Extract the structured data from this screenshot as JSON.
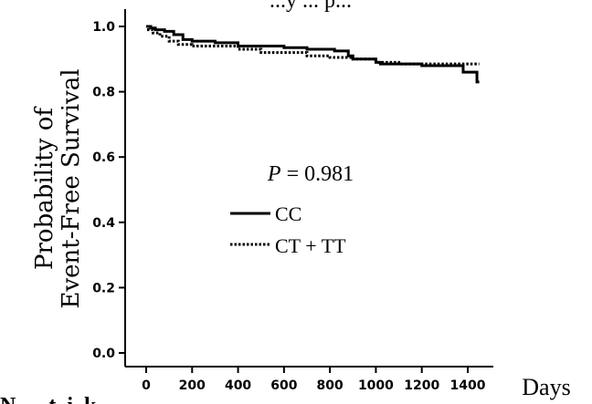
{
  "chart_data": {
    "type": "line",
    "title": "...y ... p...",
    "ylabel_line1": "Probability of",
    "ylabel_line2": "Event-Free Survival",
    "xlabel": "Days",
    "xlim": [
      0,
      1500
    ],
    "ylim": [
      0.0,
      1.0
    ],
    "x_ticks": [
      0,
      200,
      400,
      600,
      800,
      1000,
      1200,
      1400
    ],
    "x_tick_labels": [
      "0",
      "200",
      "400",
      "600",
      "800",
      "1000",
      "1200",
      "1400"
    ],
    "y_ticks": [
      0.0,
      0.2,
      0.4,
      0.6,
      0.8,
      1.0
    ],
    "y_tick_labels": [
      "0.0",
      "0.2",
      "0.4",
      "0.6",
      "0.8",
      "1.0"
    ],
    "annotation": {
      "p_symbol": "P",
      "p_text": " = 0.981"
    },
    "bottom_left_text": "N... ..t..i..k",
    "legend_position": "center",
    "series": [
      {
        "name": "CC",
        "style": "solid",
        "color": "#000000",
        "x": [
          0,
          20,
          40,
          80,
          120,
          160,
          200,
          300,
          400,
          450,
          600,
          700,
          820,
          880,
          900,
          1000,
          1020,
          1200,
          1380,
          1440,
          1450
        ],
        "y": [
          1.0,
          0.995,
          0.99,
          0.985,
          0.975,
          0.96,
          0.955,
          0.95,
          0.94,
          0.94,
          0.935,
          0.93,
          0.925,
          0.91,
          0.9,
          0.89,
          0.885,
          0.88,
          0.86,
          0.83,
          0.83
        ]
      },
      {
        "name": "CT + TT",
        "style": "dotted",
        "color": "#000000",
        "x": [
          0,
          10,
          30,
          60,
          100,
          140,
          200,
          300,
          400,
          500,
          600,
          700,
          800,
          900,
          1000,
          1100,
          1200,
          1300,
          1400,
          1450
        ],
        "y": [
          1.0,
          0.99,
          0.98,
          0.97,
          0.955,
          0.945,
          0.94,
          0.94,
          0.93,
          0.92,
          0.92,
          0.91,
          0.905,
          0.9,
          0.89,
          0.885,
          0.885,
          0.885,
          0.885,
          0.885
        ]
      }
    ]
  }
}
